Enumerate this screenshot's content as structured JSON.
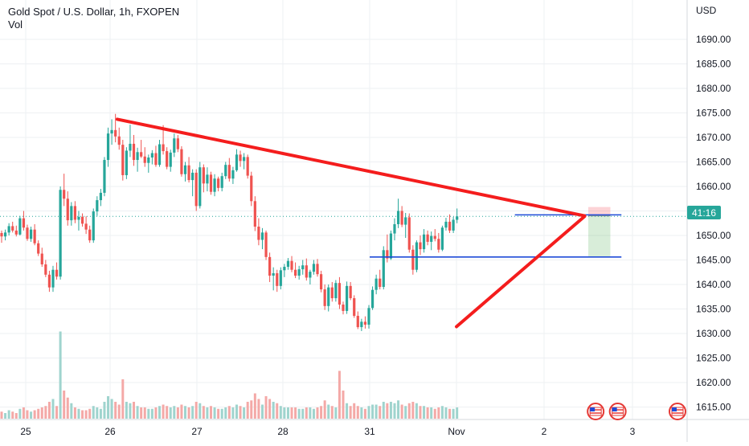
{
  "header": {
    "title": "Gold Spot / U.S. Dollar, 1h, FXOPEN",
    "volume_label": "Vol",
    "currency": "USD"
  },
  "price_badge": {
    "label": "41:16",
    "color": "#26a69a"
  },
  "colors": {
    "up": "#26a69a",
    "down": "#ef5350",
    "volume_up": "#9fd4ce",
    "volume_down": "#f4a9a7",
    "trendline": "#f41d1d",
    "support": "#1e4bd8",
    "price_line": "#26a69a",
    "grid": "#eef0f3"
  },
  "chart_data": {
    "type": "candlestick",
    "title": "Gold Spot / U.S. Dollar, 1h, FXOPEN",
    "ylabel": "USD",
    "ylim": [
      1612,
      1697
    ],
    "y_ticks": [
      1690,
      1685,
      1680,
      1675,
      1670,
      1665,
      1660,
      1655,
      1650,
      1645,
      1640,
      1635,
      1630,
      1625,
      1620,
      1615
    ],
    "x_ticks": [
      "25",
      "26",
      "27",
      "28",
      "31",
      "Nov",
      "2",
      "3"
    ],
    "grid": true,
    "current_price_line": 1653.9,
    "trendlines": [
      {
        "name": "descending-resistance",
        "from": {
          "x": "26 02:00",
          "y": 1673.7
        },
        "to": {
          "x": "2 11:00",
          "y": 1654.0
        }
      },
      {
        "name": "ascending-support",
        "from": {
          "x": "Nov 00:00",
          "y": 1631.4
        },
        "to": {
          "x": "2 11:00",
          "y": 1653.9
        }
      }
    ],
    "horizontal_levels": [
      {
        "name": "support-1645",
        "y": 1645.6,
        "from": "31 00:00",
        "to": "2 21:00"
      },
      {
        "name": "level-1654",
        "y": 1654.2,
        "from": "Nov 16:00",
        "to": "2 21:00"
      }
    ],
    "position": {
      "type": "long",
      "entry": 1654.0,
      "stop": 1655.8,
      "target": 1645.6,
      "from": "2 12:00",
      "to": "2 18:00"
    },
    "candles": [
      [
        1650.5,
        1651.0,
        1648.5,
        1649.8,
        5
      ],
      [
        1649.8,
        1651.2,
        1649.0,
        1650.6,
        4
      ],
      [
        1650.6,
        1652.5,
        1650.0,
        1651.9,
        6
      ],
      [
        1651.9,
        1652.8,
        1650.6,
        1651.0,
        5
      ],
      [
        1651.0,
        1652.0,
        1649.8,
        1650.2,
        4
      ],
      [
        1650.2,
        1654.0,
        1650.0,
        1653.5,
        7
      ],
      [
        1653.5,
        1655.0,
        1651.0,
        1651.6,
        8
      ],
      [
        1651.6,
        1652.2,
        1648.9,
        1649.3,
        6
      ],
      [
        1649.3,
        1651.8,
        1648.7,
        1651.2,
        5
      ],
      [
        1651.2,
        1652.3,
        1648.0,
        1648.4,
        6
      ],
      [
        1648.4,
        1649.0,
        1645.8,
        1646.3,
        7
      ],
      [
        1646.3,
        1647.5,
        1643.6,
        1644.1,
        8
      ],
      [
        1644.1,
        1645.0,
        1641.5,
        1642.0,
        9
      ],
      [
        1642.0,
        1642.8,
        1638.5,
        1639.4,
        12
      ],
      [
        1639.4,
        1643.8,
        1638.5,
        1643.0,
        14
      ],
      [
        1643.0,
        1644.5,
        1641.0,
        1641.6,
        9
      ],
      [
        1641.6,
        1660.0,
        1641.0,
        1659.3,
        62
      ],
      [
        1659.3,
        1662.6,
        1656.0,
        1657.5,
        20
      ],
      [
        1657.5,
        1659.0,
        1652.0,
        1653.1,
        15
      ],
      [
        1653.1,
        1656.8,
        1652.0,
        1656.0,
        11
      ],
      [
        1656.0,
        1657.0,
        1652.5,
        1653.2,
        8
      ],
      [
        1653.2,
        1655.0,
        1651.0,
        1653.8,
        7
      ],
      [
        1653.8,
        1654.5,
        1651.8,
        1652.4,
        6
      ],
      [
        1652.4,
        1653.9,
        1650.3,
        1651.2,
        6
      ],
      [
        1651.2,
        1652.0,
        1648.5,
        1649.0,
        7
      ],
      [
        1649.0,
        1655.5,
        1648.5,
        1654.9,
        9
      ],
      [
        1654.9,
        1658.0,
        1654.0,
        1657.2,
        8
      ],
      [
        1657.2,
        1659.5,
        1656.0,
        1658.7,
        7
      ],
      [
        1658.7,
        1666.0,
        1658.0,
        1665.4,
        12
      ],
      [
        1665.4,
        1672.0,
        1664.0,
        1670.8,
        16
      ],
      [
        1670.8,
        1673.7,
        1668.5,
        1671.5,
        14
      ],
      [
        1671.5,
        1674.8,
        1669.0,
        1670.2,
        12
      ],
      [
        1670.2,
        1672.0,
        1667.5,
        1668.5,
        10
      ],
      [
        1668.5,
        1669.5,
        1661.2,
        1662.3,
        28
      ],
      [
        1662.3,
        1668.0,
        1661.5,
        1667.3,
        12
      ],
      [
        1667.3,
        1672.6,
        1666.0,
        1668.7,
        11
      ],
      [
        1668.7,
        1670.5,
        1664.2,
        1665.4,
        12
      ],
      [
        1665.4,
        1667.9,
        1663.0,
        1667.0,
        9
      ],
      [
        1667.0,
        1669.5,
        1665.8,
        1666.1,
        8
      ],
      [
        1666.1,
        1668.0,
        1664.0,
        1664.8,
        8
      ],
      [
        1664.8,
        1666.5,
        1662.8,
        1665.9,
        7
      ],
      [
        1665.9,
        1667.4,
        1664.5,
        1666.8,
        7
      ],
      [
        1666.8,
        1668.3,
        1664.0,
        1664.4,
        8
      ],
      [
        1664.4,
        1669.5,
        1664.0,
        1668.6,
        9
      ],
      [
        1668.6,
        1672.5,
        1666.5,
        1667.2,
        10
      ],
      [
        1667.2,
        1668.0,
        1663.5,
        1664.0,
        9
      ],
      [
        1664.0,
        1667.5,
        1663.0,
        1666.9,
        8
      ],
      [
        1666.9,
        1670.8,
        1666.0,
        1669.8,
        9
      ],
      [
        1669.8,
        1670.5,
        1667.0,
        1667.6,
        8
      ],
      [
        1667.6,
        1668.2,
        1662.0,
        1662.5,
        10
      ],
      [
        1662.5,
        1665.0,
        1661.0,
        1664.3,
        9
      ],
      [
        1664.3,
        1666.0,
        1660.8,
        1661.3,
        8
      ],
      [
        1661.3,
        1663.5,
        1658.0,
        1662.8,
        9
      ],
      [
        1662.8,
        1663.5,
        1655.0,
        1656.0,
        12
      ],
      [
        1656.0,
        1665.0,
        1655.5,
        1663.9,
        11
      ],
      [
        1663.9,
        1664.5,
        1658.8,
        1660.6,
        9
      ],
      [
        1660.6,
        1663.9,
        1659.0,
        1662.4,
        8
      ],
      [
        1662.4,
        1663.0,
        1658.3,
        1658.9,
        9
      ],
      [
        1658.9,
        1662.5,
        1658.0,
        1661.6,
        8
      ],
      [
        1661.6,
        1662.0,
        1659.0,
        1659.7,
        7
      ],
      [
        1659.7,
        1662.8,
        1659.0,
        1662.1,
        7
      ],
      [
        1662.1,
        1665.0,
        1661.5,
        1664.4,
        8
      ],
      [
        1664.4,
        1665.8,
        1661.0,
        1661.6,
        9
      ],
      [
        1661.6,
        1664.0,
        1660.5,
        1663.3,
        8
      ],
      [
        1663.3,
        1667.6,
        1663.0,
        1666.5,
        10
      ],
      [
        1666.5,
        1667.3,
        1664.0,
        1665.2,
        9
      ],
      [
        1665.2,
        1666.8,
        1663.5,
        1666.0,
        8
      ],
      [
        1666.0,
        1666.5,
        1661.6,
        1662.2,
        12
      ],
      [
        1662.2,
        1663.0,
        1656.0,
        1657.0,
        13
      ],
      [
        1657.0,
        1658.0,
        1650.9,
        1651.8,
        18
      ],
      [
        1651.8,
        1653.5,
        1648.0,
        1649.1,
        14
      ],
      [
        1649.1,
        1651.5,
        1647.2,
        1650.6,
        10
      ],
      [
        1650.6,
        1651.0,
        1645.0,
        1645.6,
        16
      ],
      [
        1645.6,
        1646.5,
        1640.5,
        1641.8,
        14
      ],
      [
        1641.8,
        1643.5,
        1638.8,
        1642.3,
        12
      ],
      [
        1642.3,
        1643.0,
        1638.5,
        1639.7,
        11
      ],
      [
        1639.7,
        1643.5,
        1639.0,
        1642.9,
        9
      ],
      [
        1642.9,
        1644.2,
        1641.5,
        1643.6,
        8
      ],
      [
        1643.6,
        1645.4,
        1643.0,
        1644.8,
        8
      ],
      [
        1644.8,
        1645.8,
        1642.5,
        1643.0,
        8
      ],
      [
        1643.0,
        1644.5,
        1641.3,
        1641.8,
        8
      ],
      [
        1641.8,
        1643.8,
        1641.0,
        1643.1,
        7
      ],
      [
        1643.1,
        1645.0,
        1642.0,
        1643.9,
        7
      ],
      [
        1643.9,
        1645.3,
        1640.8,
        1641.4,
        8
      ],
      [
        1641.4,
        1643.0,
        1640.0,
        1642.6,
        8
      ],
      [
        1642.6,
        1645.0,
        1642.0,
        1644.2,
        7
      ],
      [
        1644.2,
        1645.2,
        1641.6,
        1642.1,
        8
      ],
      [
        1642.1,
        1642.8,
        1638.4,
        1639.0,
        9
      ],
      [
        1639.0,
        1640.0,
        1634.8,
        1635.6,
        13
      ],
      [
        1635.6,
        1640.0,
        1634.5,
        1639.4,
        10
      ],
      [
        1639.4,
        1640.5,
        1636.5,
        1637.2,
        9
      ],
      [
        1637.2,
        1640.9,
        1636.5,
        1640.3,
        8
      ],
      [
        1640.3,
        1641.5,
        1635.0,
        1635.9,
        34
      ],
      [
        1635.9,
        1636.5,
        1633.9,
        1634.6,
        20
      ],
      [
        1634.6,
        1640.6,
        1634.0,
        1639.7,
        11
      ],
      [
        1639.7,
        1640.5,
        1636.8,
        1637.2,
        9
      ],
      [
        1637.2,
        1637.8,
        1633.2,
        1633.6,
        11
      ],
      [
        1633.6,
        1634.5,
        1630.9,
        1631.3,
        9
      ],
      [
        1631.3,
        1633.0,
        1630.5,
        1632.4,
        8
      ],
      [
        1632.4,
        1633.5,
        1631.0,
        1631.8,
        7
      ],
      [
        1631.8,
        1635.8,
        1631.0,
        1635.2,
        9
      ],
      [
        1635.2,
        1639.6,
        1634.8,
        1638.9,
        10
      ],
      [
        1638.9,
        1642.0,
        1638.0,
        1641.2,
        10
      ],
      [
        1641.2,
        1643.0,
        1639.0,
        1639.5,
        9
      ],
      [
        1639.5,
        1647.8,
        1639.0,
        1647.0,
        12
      ],
      [
        1647.0,
        1650.2,
        1644.5,
        1645.3,
        11
      ],
      [
        1645.3,
        1651.0,
        1645.0,
        1650.4,
        12
      ],
      [
        1650.4,
        1653.5,
        1649.0,
        1652.3,
        11
      ],
      [
        1652.3,
        1657.5,
        1651.5,
        1655.0,
        13
      ],
      [
        1655.0,
        1656.0,
        1651.7,
        1652.2,
        10
      ],
      [
        1652.2,
        1654.6,
        1649.5,
        1653.7,
        9
      ],
      [
        1653.7,
        1654.5,
        1646.5,
        1647.1,
        11
      ],
      [
        1647.1,
        1648.0,
        1642.0,
        1643.0,
        12
      ],
      [
        1643.0,
        1649.0,
        1642.5,
        1648.6,
        11
      ],
      [
        1648.6,
        1650.0,
        1646.0,
        1647.2,
        9
      ],
      [
        1647.2,
        1651.3,
        1646.5,
        1650.2,
        9
      ],
      [
        1650.2,
        1651.0,
        1648.0,
        1648.7,
        8
      ],
      [
        1648.7,
        1650.8,
        1647.0,
        1649.9,
        8
      ],
      [
        1649.9,
        1651.3,
        1648.8,
        1649.3,
        7
      ],
      [
        1649.3,
        1650.5,
        1646.5,
        1647.1,
        8
      ],
      [
        1647.1,
        1652.0,
        1646.8,
        1651.6,
        9
      ],
      [
        1651.6,
        1653.6,
        1651.0,
        1652.8,
        8
      ],
      [
        1652.8,
        1654.3,
        1650.5,
        1651.0,
        7
      ],
      [
        1651.0,
        1653.8,
        1650.5,
        1653.2,
        7
      ],
      [
        1653.2,
        1655.5,
        1652.5,
        1653.9,
        8
      ]
    ]
  }
}
